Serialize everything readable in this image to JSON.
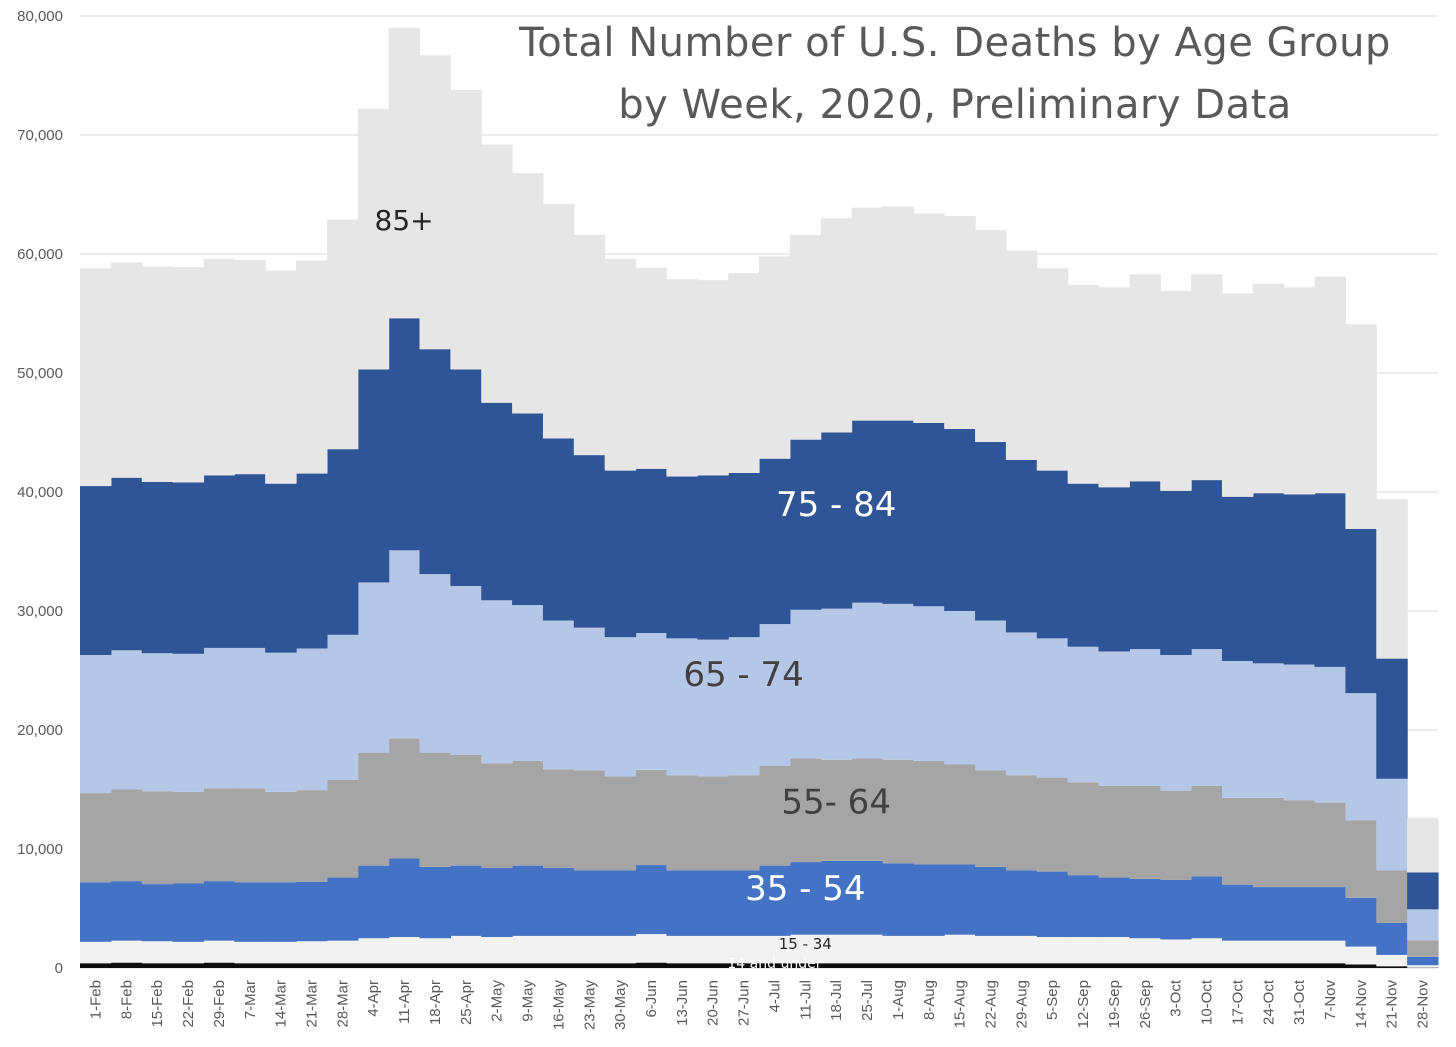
{
  "chart_data": {
    "type": "area",
    "stacked": true,
    "title_lines": [
      "Total Number of U.S. Deaths by Age Group",
      "by Week, 2020, Preliminary Data"
    ],
    "xlabel": "",
    "ylabel": "",
    "ylim": [
      0,
      80000
    ],
    "yticks": [
      0,
      10000,
      20000,
      30000,
      40000,
      50000,
      60000,
      70000,
      80000
    ],
    "ytick_labels": [
      "0",
      "10,000",
      "20,000",
      "30,000",
      "40,000",
      "50,000",
      "60,000",
      "70,000",
      "80,000"
    ],
    "grid": true,
    "legend": "none",
    "categories": [
      "1-Feb",
      "8-Feb",
      "15-Feb",
      "22-Feb",
      "29-Feb",
      "7-Mar",
      "14-Mar",
      "21-Mar",
      "28-Mar",
      "4-Apr",
      "11-Apr",
      "18-Apr",
      "25-Apr",
      "2-May",
      "9-May",
      "16-May",
      "23-May",
      "30-May",
      "6-Jun",
      "13-Jun",
      "20-Jun",
      "27-Jun",
      "4-Jul",
      "11-Jul",
      "18-Jul",
      "25-Jul",
      "1-Aug",
      "8-Aug",
      "15-Aug",
      "22-Aug",
      "29-Aug",
      "5-Sep",
      "12-Sep",
      "19-Sep",
      "26-Sep",
      "3-Oct",
      "10-Oct",
      "17-Oct",
      "24-Oct",
      "31-Oct",
      "7-Nov",
      "14-Nov",
      "21-Nov",
      "28-Nov"
    ],
    "series": [
      {
        "name": "14 and under",
        "color": "#0d0d0d",
        "values": [
          400,
          450,
          400,
          400,
          450,
          400,
          400,
          400,
          400,
          400,
          400,
          400,
          400,
          400,
          400,
          400,
          400,
          400,
          450,
          400,
          400,
          400,
          400,
          400,
          400,
          400,
          400,
          400,
          400,
          400,
          400,
          400,
          400,
          400,
          400,
          400,
          400,
          400,
          400,
          400,
          400,
          300,
          150,
          30
        ]
      },
      {
        "name": "15 - 34",
        "color": "#f2f2f2",
        "values": [
          1800,
          1850,
          1850,
          1800,
          1850,
          1800,
          1800,
          1850,
          1900,
          2100,
          2200,
          2100,
          2300,
          2200,
          2300,
          2300,
          2300,
          2300,
          2400,
          2300,
          2300,
          2300,
          2300,
          2400,
          2400,
          2400,
          2300,
          2300,
          2400,
          2300,
          2300,
          2200,
          2200,
          2200,
          2100,
          2000,
          2100,
          1900,
          1900,
          1900,
          1900,
          1500,
          950,
          200
        ]
      },
      {
        "name": "35 - 54",
        "color": "#4472c4",
        "values": [
          5000,
          5000,
          4800,
          4900,
          5000,
          5000,
          5000,
          5000,
          5300,
          6100,
          6600,
          6000,
          5900,
          5800,
          5900,
          5700,
          5500,
          5500,
          5800,
          5500,
          5500,
          5500,
          5900,
          6100,
          6200,
          6200,
          6100,
          6000,
          5900,
          5800,
          5500,
          5500,
          5200,
          5000,
          5000,
          5000,
          5200,
          4700,
          4500,
          4500,
          4500,
          4100,
          2700,
          700
        ]
      },
      {
        "name": "55- 64",
        "color": "#a5a5a5",
        "values": [
          7500,
          7700,
          7800,
          7700,
          7800,
          7900,
          7600,
          7700,
          8200,
          9500,
          10100,
          9600,
          9300,
          8800,
          8800,
          8300,
          8400,
          7900,
          8000,
          8000,
          7900,
          8000,
          8400,
          8700,
          8500,
          8600,
          8700,
          8700,
          8400,
          8100,
          8000,
          7900,
          7800,
          7700,
          7800,
          7500,
          7600,
          7300,
          7500,
          7300,
          7100,
          6500,
          4400,
          1400
        ]
      },
      {
        "name": "65 - 74",
        "color": "#b4c7e7",
        "values": [
          11600,
          11700,
          11600,
          11600,
          11800,
          11800,
          11700,
          11900,
          12200,
          14300,
          15800,
          15000,
          14200,
          13700,
          13100,
          12500,
          12000,
          11700,
          11500,
          11500,
          11500,
          11600,
          11900,
          12500,
          12700,
          13100,
          13100,
          13000,
          12900,
          12600,
          12000,
          11700,
          11400,
          11300,
          11500,
          11400,
          11500,
          11500,
          11300,
          11400,
          11400,
          10700,
          7700,
          2600
        ]
      },
      {
        "name": "75 - 84",
        "color": "#2f5597",
        "values": [
          14200,
          14500,
          14400,
          14400,
          14500,
          14600,
          14200,
          14700,
          15600,
          17900,
          19500,
          18900,
          18200,
          16600,
          16100,
          15300,
          14500,
          14000,
          13800,
          13600,
          13800,
          13800,
          13900,
          14300,
          14800,
          15300,
          15400,
          15400,
          15300,
          15000,
          14500,
          14100,
          13700,
          13800,
          14100,
          13800,
          14200,
          13800,
          14300,
          14300,
          14600,
          13800,
          10100,
          3100
        ]
      },
      {
        "name": "85+",
        "color": "#e7e6e6",
        "values": [
          18300,
          18100,
          18100,
          18100,
          18200,
          18000,
          17900,
          17900,
          19300,
          21900,
          24400,
          24700,
          23500,
          21700,
          20200,
          19700,
          18500,
          17800,
          16900,
          16600,
          16400,
          16800,
          17000,
          17200,
          18000,
          17900,
          18000,
          17600,
          17900,
          17800,
          17600,
          17000,
          16700,
          16800,
          17400,
          16800,
          17300,
          17100,
          17600,
          17400,
          18200,
          17200,
          13400,
          4600
        ]
      }
    ],
    "segment_labels": [
      {
        "text": "85+",
        "series": "85+",
        "x_category": "11-Apr",
        "y": 62000,
        "size": 28,
        "color": "#262626"
      },
      {
        "text": "75 - 84",
        "series": "75 - 84",
        "x_category": "18-Jul",
        "y": 38000,
        "size": 34,
        "color": "#ffffff"
      },
      {
        "text": "65 - 74",
        "series": "65 - 74",
        "x_category": "27-Jun",
        "y": 23700,
        "size": 34,
        "color": "#404040"
      },
      {
        "text": "55- 64",
        "series": "55- 64",
        "x_category": "18-Jul",
        "y": 13000,
        "size": 34,
        "color": "#404040"
      },
      {
        "text": "35 - 54",
        "series": "35 - 54",
        "x_category": "11-Jul",
        "y": 5700,
        "size": 34,
        "color": "#ffffff"
      },
      {
        "text": "15 - 34",
        "series": "15 - 34",
        "x_category": "11-Jul",
        "y": 1600,
        "size": 15,
        "color": "#262626"
      },
      {
        "text": "14 and under",
        "series": "14 and under",
        "x_category": "4-Jul",
        "y": 0,
        "size": 14,
        "color": "#ffffff"
      }
    ]
  }
}
